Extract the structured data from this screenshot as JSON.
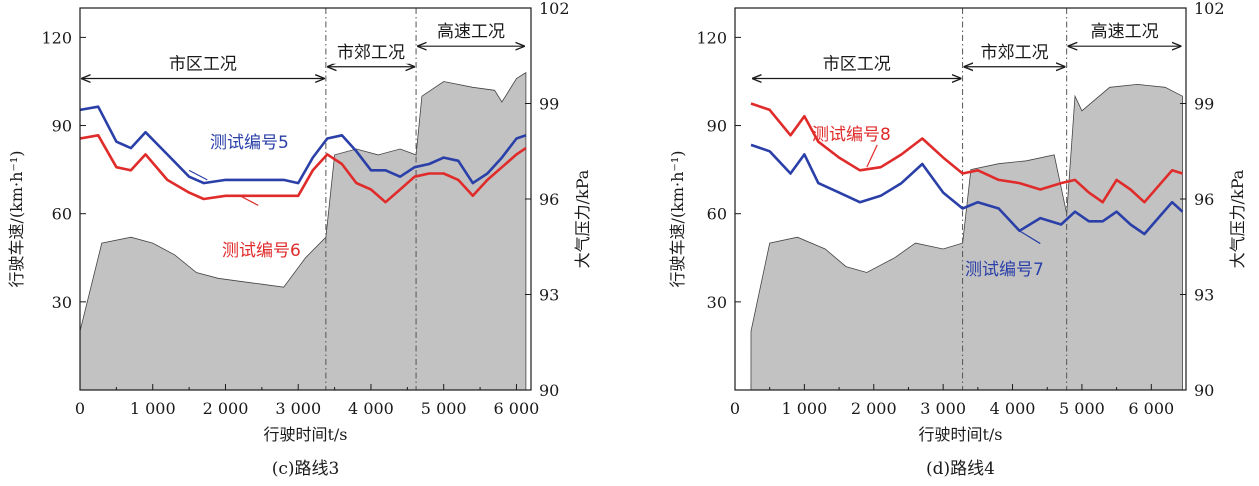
{
  "chart_data": [
    {
      "type": "line",
      "caption": "(c)路线3",
      "xlabel": "行驶时间t/s",
      "ylabel_left": "行驶车速/(km·h⁻¹)",
      "ylabel_right": "大气压力/kPa",
      "xlim": [
        0,
        6200
      ],
      "ylim_left": [
        0,
        130
      ],
      "ylim_right": [
        90,
        102
      ],
      "x_ticks": [
        0,
        1000,
        2000,
        3000,
        4000,
        5000,
        6000
      ],
      "x_tick_labels": [
        "0",
        "1 000",
        "2 000",
        "3 000",
        "4 000",
        "5 000",
        "6 000"
      ],
      "y_left_ticks": [
        30,
        60,
        90,
        120
      ],
      "y_right_ticks": [
        90,
        93,
        96,
        99,
        102
      ],
      "segments": [
        {
          "label": "市区工况",
          "x_start": 0,
          "x_end": 3380
        },
        {
          "label": "市郊工况",
          "x_start": 3380,
          "x_end": 4620
        },
        {
          "label": "高速工况",
          "x_start": 4620,
          "x_end": 6130
        }
      ],
      "speed_envelope": {
        "x": [
          0,
          300,
          700,
          1000,
          1300,
          1600,
          1900,
          2200,
          2500,
          2800,
          3100,
          3380,
          3500,
          3800,
          4100,
          4400,
          4620,
          4700,
          5000,
          5400,
          5700,
          5800,
          6000,
          6130
        ],
        "y": [
          20,
          50,
          52,
          50,
          46,
          40,
          38,
          37,
          36,
          35,
          45,
          52,
          80,
          82,
          80,
          82,
          80,
          100,
          105,
          103,
          102,
          98,
          106,
          108
        ]
      },
      "series": [
        {
          "name": "测试编号5",
          "color": "#2a3fa8",
          "x": [
            0,
            250,
            500,
            700,
            900,
            1200,
            1500,
            1700,
            2000,
            2400,
            2800,
            3000,
            3200,
            3400,
            3600,
            3800,
            4000,
            4200,
            4400,
            4600,
            4800,
            5000,
            5200,
            5400,
            5600,
            5800,
            6000,
            6130
          ],
          "y": [
            98.8,
            98.9,
            97.8,
            97.6,
            98.1,
            97.4,
            96.7,
            96.5,
            96.6,
            96.6,
            96.6,
            96.5,
            97.3,
            97.9,
            98.0,
            97.5,
            96.9,
            96.9,
            96.7,
            97.0,
            97.1,
            97.3,
            97.2,
            96.5,
            96.8,
            97.3,
            97.9,
            98.0
          ]
        },
        {
          "name": "测试编号6",
          "color": "#e02b2b",
          "x": [
            0,
            250,
            500,
            700,
            900,
            1200,
            1500,
            1700,
            2000,
            2400,
            2800,
            3000,
            3200,
            3400,
            3600,
            3800,
            4000,
            4200,
            4400,
            4600,
            4800,
            5000,
            5200,
            5400,
            5600,
            5800,
            6000,
            6130
          ],
          "y": [
            97.9,
            98.0,
            97.0,
            96.9,
            97.4,
            96.6,
            96.2,
            96.0,
            96.1,
            96.1,
            96.1,
            96.1,
            96.9,
            97.4,
            97.1,
            96.5,
            96.3,
            95.9,
            96.3,
            96.7,
            96.8,
            96.8,
            96.6,
            96.1,
            96.6,
            97.0,
            97.4,
            97.6
          ]
        }
      ],
      "annotations": [
        "测试编号5",
        "测试编号6"
      ]
    },
    {
      "type": "line",
      "caption": "(d)路线4",
      "xlabel": "行驶时间t/s",
      "ylabel_left": "行驶车速/(km·h⁻¹)",
      "ylabel_right": "大气压力/kPa",
      "xlim": [
        0,
        6500
      ],
      "ylim_left": [
        0,
        130
      ],
      "ylim_right": [
        90,
        102
      ],
      "x_ticks": [
        0,
        1000,
        2000,
        3000,
        4000,
        5000,
        6000
      ],
      "x_tick_labels": [
        "0",
        "1 000",
        "2 000",
        "3 000",
        "4 000",
        "5 000",
        "6 000"
      ],
      "y_left_ticks": [
        30,
        60,
        90,
        120
      ],
      "y_right_ticks": [
        90,
        93,
        96,
        99,
        102
      ],
      "segments": [
        {
          "label": "市区工况",
          "x_start": 230,
          "x_end": 3280
        },
        {
          "label": "市郊工况",
          "x_start": 3280,
          "x_end": 4780
        },
        {
          "label": "高速工况",
          "x_start": 4780,
          "x_end": 6450
        }
      ],
      "speed_envelope": {
        "x": [
          230,
          500,
          900,
          1300,
          1600,
          1900,
          2300,
          2600,
          3000,
          3280,
          3400,
          3800,
          4200,
          4600,
          4780,
          4900,
          5000,
          5400,
          5800,
          6200,
          6450
        ],
        "y": [
          20,
          50,
          52,
          48,
          42,
          40,
          45,
          50,
          48,
          50,
          75,
          77,
          78,
          80,
          60,
          100,
          95,
          103,
          104,
          103,
          100
        ]
      },
      "series": [
        {
          "name": "测试编号8",
          "color": "#e02b2b",
          "x": [
            230,
            500,
            800,
            1000,
            1200,
            1500,
            1800,
            2100,
            2400,
            2700,
            3000,
            3280,
            3500,
            3800,
            4100,
            4400,
            4700,
            4900,
            5100,
            5300,
            5500,
            5700,
            5900,
            6100,
            6300,
            6450
          ],
          "y": [
            99.0,
            98.8,
            98.0,
            98.6,
            97.8,
            97.3,
            96.9,
            97.0,
            97.4,
            97.9,
            97.3,
            96.8,
            96.9,
            96.6,
            96.5,
            96.3,
            96.5,
            96.6,
            96.2,
            95.9,
            96.6,
            96.3,
            95.9,
            96.4,
            96.9,
            96.8
          ]
        },
        {
          "name": "测试编号7",
          "color": "#2a3fa8",
          "x": [
            230,
            500,
            800,
            1000,
            1200,
            1500,
            1800,
            2100,
            2400,
            2700,
            3000,
            3280,
            3500,
            3800,
            4100,
            4400,
            4700,
            4900,
            5100,
            5300,
            5500,
            5700,
            5900,
            6100,
            6300,
            6450
          ],
          "y": [
            97.7,
            97.5,
            96.8,
            97.4,
            96.5,
            96.2,
            95.9,
            96.1,
            96.5,
            97.1,
            96.2,
            95.7,
            95.9,
            95.7,
            95.0,
            95.4,
            95.2,
            95.6,
            95.3,
            95.3,
            95.6,
            95.2,
            94.9,
            95.4,
            95.9,
            95.6
          ]
        }
      ],
      "annotations": [
        "测试编号8",
        "测试编号7"
      ]
    }
  ]
}
